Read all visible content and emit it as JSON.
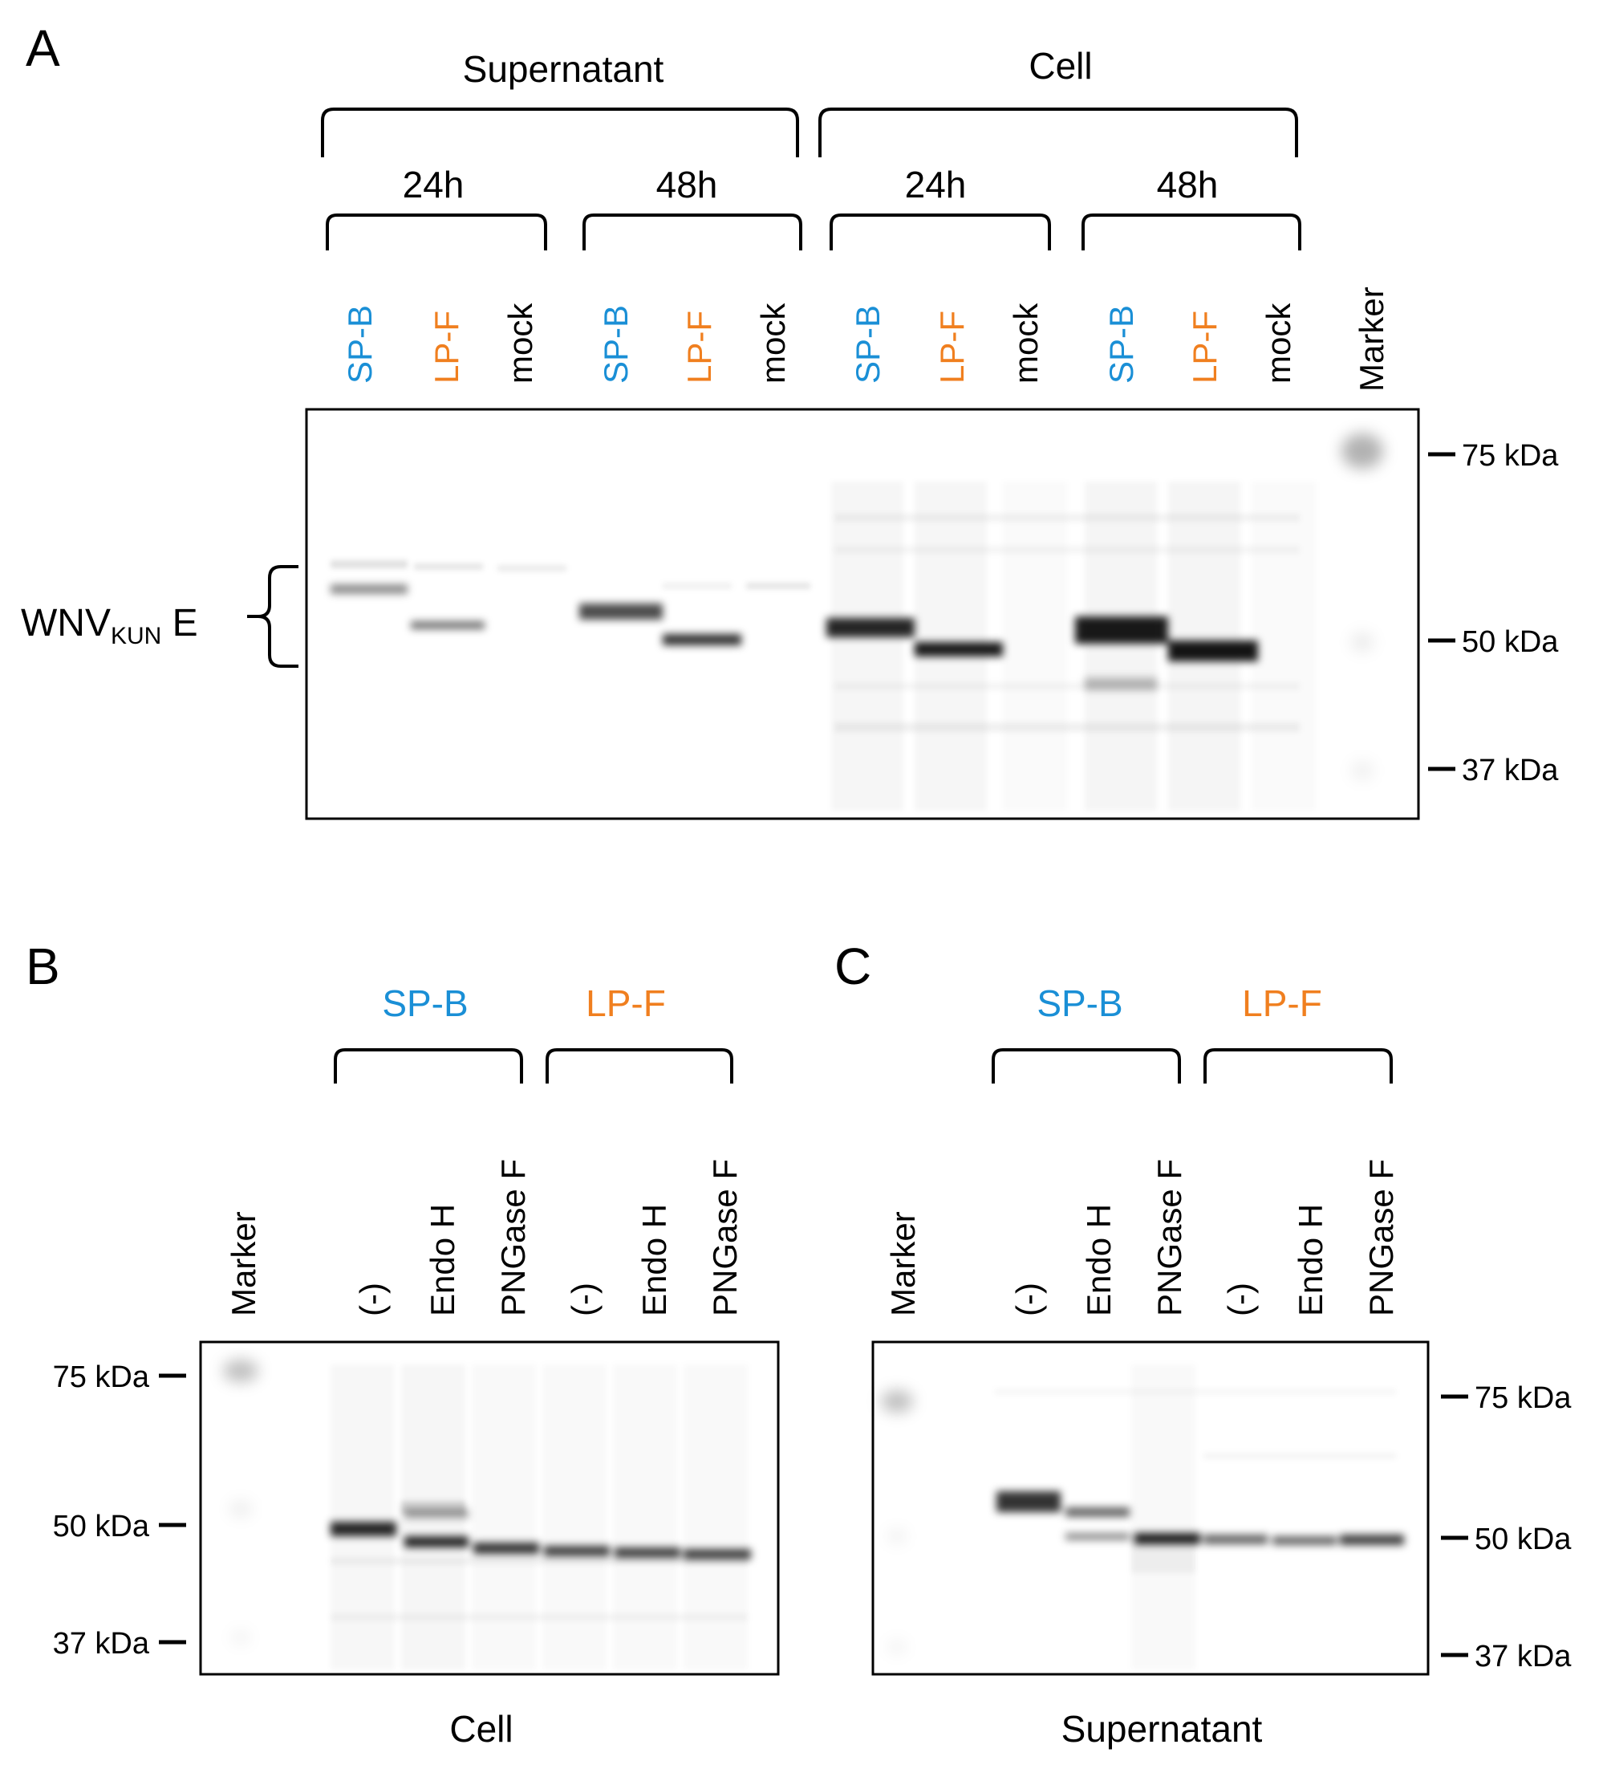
{
  "colors": {
    "spb": "#1a8fd6",
    "lpf": "#f07f1f",
    "text": "#000000"
  },
  "panel_a": {
    "letter": "A",
    "group_labels": [
      "Supernatant",
      "Cell"
    ],
    "time_labels": [
      "24h",
      "48h",
      "24h",
      "48h"
    ],
    "lane_labels": [
      "SP-B",
      "LP-F",
      "mock",
      "SP-B",
      "LP-F",
      "mock",
      "SP-B",
      "LP-F",
      "mock",
      "SP-B",
      "LP-F",
      "mock",
      "Marker"
    ],
    "protein_label_main": "WNV",
    "protein_label_sub": "KUN",
    "protein_label_suffix": " E",
    "markers": [
      "75 kDa",
      "50 kDa",
      "37 kDa"
    ]
  },
  "panel_b": {
    "letter": "B",
    "group_labels": [
      "SP-B",
      "LP-F"
    ],
    "lane_labels": [
      "Marker",
      "(-)",
      "Endo H",
      "PNGase F",
      "(-)",
      "Endo H",
      "PNGase F"
    ],
    "markers": [
      "75 kDa",
      "50 kDa",
      "37 kDa"
    ],
    "caption": "Cell"
  },
  "panel_c": {
    "letter": "C",
    "group_labels": [
      "SP-B",
      "LP-F"
    ],
    "lane_labels": [
      "Marker",
      "(-)",
      "Endo H",
      "PNGase F",
      "(-)",
      "Endo H",
      "PNGase F"
    ],
    "markers": [
      "75 kDa",
      "50 kDa",
      "37 kDa"
    ],
    "caption": "Supernatant"
  }
}
